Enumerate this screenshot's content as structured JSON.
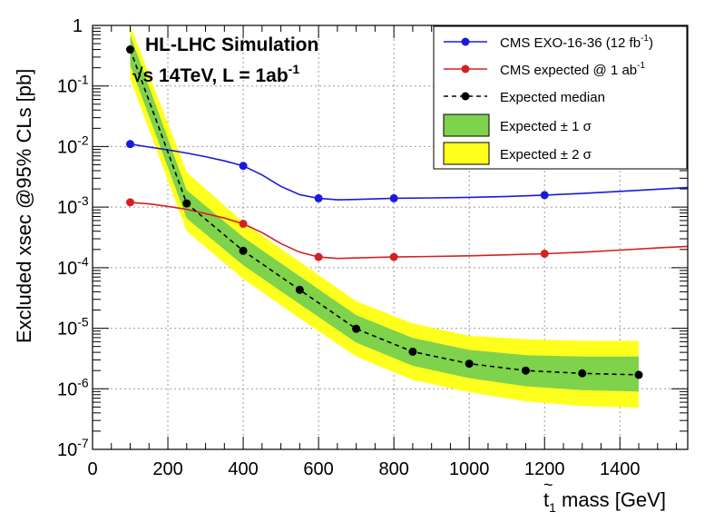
{
  "chart_data": {
    "type": "line",
    "title": {
      "line1": "HL-LHC Simulation",
      "line2_prefix": "√s 14TeV, L = 1ab",
      "line2_sup": "-1"
    },
    "xlabel": {
      "base": "t",
      "tilde": "~",
      "sub": "1",
      "rest": " mass [GeV]"
    },
    "ylabel": "Excluded xsec @95% CLs [pb]",
    "xlim": [
      0,
      1580
    ],
    "ylim_log10": [
      -7,
      0
    ],
    "x_log": false,
    "y_log": true,
    "grid": true,
    "legend_position": "top-right",
    "x_ticks": [
      0,
      200,
      400,
      600,
      800,
      1000,
      1200,
      1400
    ],
    "y_ticks": [
      {
        "exp": -7,
        "label": "10",
        "sup": "-7"
      },
      {
        "exp": -6,
        "label": "10",
        "sup": "-6"
      },
      {
        "exp": -5,
        "label": "10",
        "sup": "-5"
      },
      {
        "exp": -4,
        "label": "10",
        "sup": "-4"
      },
      {
        "exp": -3,
        "label": "10",
        "sup": "-3"
      },
      {
        "exp": -2,
        "label": "10",
        "sup": "-2"
      },
      {
        "exp": -1,
        "label": "10",
        "sup": "-1"
      },
      {
        "exp": 0,
        "label": "1",
        "sup": ""
      }
    ],
    "legend": [
      {
        "key": "obs12",
        "label_pre": "CMS EXO-16-36 (12 fb",
        "label_sup": "-1",
        "label_post": ")",
        "kind": "line-marker",
        "color": "#1a1adc"
      },
      {
        "key": "exp1ab",
        "label_pre": "CMS expected @ 1 ab",
        "label_sup": "-1",
        "label_post": "",
        "kind": "line-marker",
        "color": "#d62020"
      },
      {
        "key": "median",
        "label_pre": "Expected median",
        "label_sup": "",
        "label_post": "",
        "kind": "dashed-marker",
        "color": "#000000"
      },
      {
        "key": "band1",
        "label_pre": "Expected ± 1 σ",
        "label_sup": "",
        "label_post": "",
        "kind": "box",
        "color": "#7fd24c"
      },
      {
        "key": "band2",
        "label_pre": "Expected ± 2 σ",
        "label_sup": "",
        "label_post": "",
        "kind": "box",
        "color": "#ffff1e"
      }
    ],
    "series": {
      "obs12": {
        "color": "#1a1adc",
        "curve_x": [
          100,
          150,
          200,
          250,
          300,
          350,
          400,
          450,
          500,
          550,
          600,
          650,
          700,
          800,
          900,
          1000,
          1100,
          1200,
          1300,
          1400,
          1500,
          1580
        ],
        "curve_y": [
          0.011,
          0.0098,
          0.0088,
          0.0078,
          0.0068,
          0.0058,
          0.0048,
          0.0034,
          0.0022,
          0.0016,
          0.0014,
          0.00132,
          0.00134,
          0.0014,
          0.00142,
          0.00145,
          0.0015,
          0.00158,
          0.00168,
          0.00182,
          0.00198,
          0.0021
        ],
        "marker_x": [
          100,
          400,
          600,
          800,
          1200
        ],
        "marker_y": [
          0.011,
          0.0048,
          0.0014,
          0.0014,
          0.00158
        ]
      },
      "exp1ab": {
        "color": "#d62020",
        "curve_x": [
          100,
          150,
          200,
          250,
          300,
          350,
          400,
          450,
          500,
          550,
          600,
          650,
          700,
          800,
          900,
          1000,
          1100,
          1200,
          1300,
          1400,
          1500,
          1580
        ],
        "curve_y": [
          0.0012,
          0.00113,
          0.00103,
          0.00092,
          0.00078,
          0.00066,
          0.00053,
          0.00038,
          0.00025,
          0.00018,
          0.00015,
          0.000142,
          0.000145,
          0.00015,
          0.000153,
          0.000157,
          0.000163,
          0.00017,
          0.00018,
          0.000195,
          0.000212,
          0.000225
        ],
        "marker_x": [
          100,
          400,
          600,
          800,
          1200
        ],
        "marker_y": [
          0.0012,
          0.00053,
          0.00015,
          0.00015,
          0.00017
        ]
      },
      "median": {
        "color": "#000000",
        "x": [
          100,
          250,
          400,
          550,
          700,
          850,
          1000,
          1150,
          1300,
          1450
        ],
        "y": [
          0.4,
          0.00115,
          0.00019,
          4.3e-05,
          9.8e-06,
          4.1e-06,
          2.6e-06,
          2e-06,
          1.8e-06,
          1.7e-06
        ]
      },
      "band1": {
        "color": "#7fd24c",
        "x": [
          100,
          250,
          400,
          550,
          700,
          850,
          1000,
          1150,
          1300,
          1450
        ],
        "upper": [
          0.7,
          0.0019,
          0.00032,
          7.2e-05,
          1.65e-05,
          6.9e-06,
          4.4e-06,
          3.6e-06,
          3.4e-06,
          3.4e-06
        ],
        "lower": [
          0.22,
          0.00065,
          0.00011,
          2.5e-05,
          5.8e-06,
          2.4e-06,
          1.5e-06,
          1.1e-06,
          9.5e-07,
          9e-07
        ]
      },
      "band2": {
        "color": "#ffff1e",
        "x": [
          100,
          250,
          400,
          550,
          700,
          850,
          1000,
          1150,
          1300,
          1450
        ],
        "upper": [
          1.0,
          0.0038,
          0.00056,
          0.000125,
          2.8e-05,
          1.2e-05,
          7.5e-06,
          6.6e-06,
          6.2e-06,
          6.2e-06
        ],
        "lower": [
          0.13,
          0.0004,
          6.5e-05,
          1.45e-05,
          3.4e-06,
          1.4e-06,
          8.8e-07,
          6.2e-07,
          5.2e-07,
          4.9e-07
        ]
      }
    }
  }
}
